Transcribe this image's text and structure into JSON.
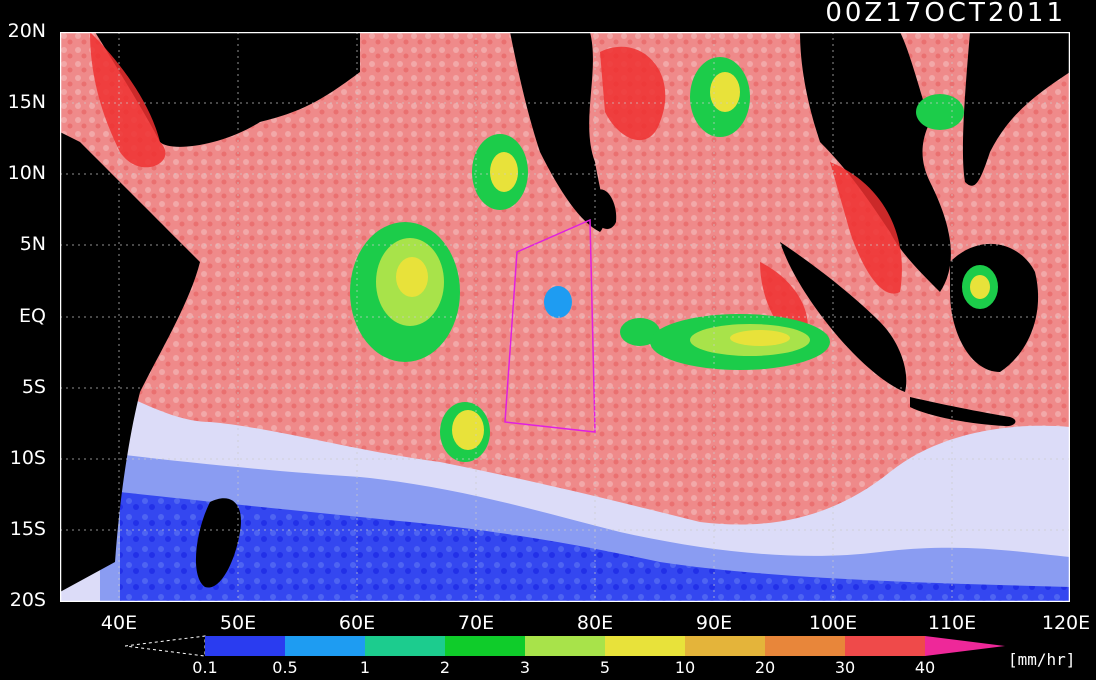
{
  "map": {
    "title": "00Z17OCT2011",
    "lat_labels": [
      "20N",
      "15N",
      "10N",
      "5N",
      "EQ",
      "5S",
      "10S",
      "15S",
      "20S"
    ],
    "lon_labels": [
      "40E",
      "50E",
      "60E",
      "70E",
      "80E",
      "90E",
      "100E",
      "110E",
      "120E"
    ],
    "lon_range": [
      35,
      120
    ],
    "lat_range": [
      -20,
      20
    ]
  },
  "colorbar": {
    "labels": [
      "0.1",
      "0.5",
      "1",
      "2",
      "3",
      "5",
      "10",
      "20",
      "30",
      "40"
    ],
    "units": "[mm/hr]",
    "colors": [
      "#2a3cf0",
      "#1e9cf2",
      "#1ccc8e",
      "#0fcc2a",
      "#a8e34a",
      "#e8e23a",
      "#e4b43a",
      "#e8863a",
      "#ef4a4a",
      "#ee2899"
    ]
  }
}
